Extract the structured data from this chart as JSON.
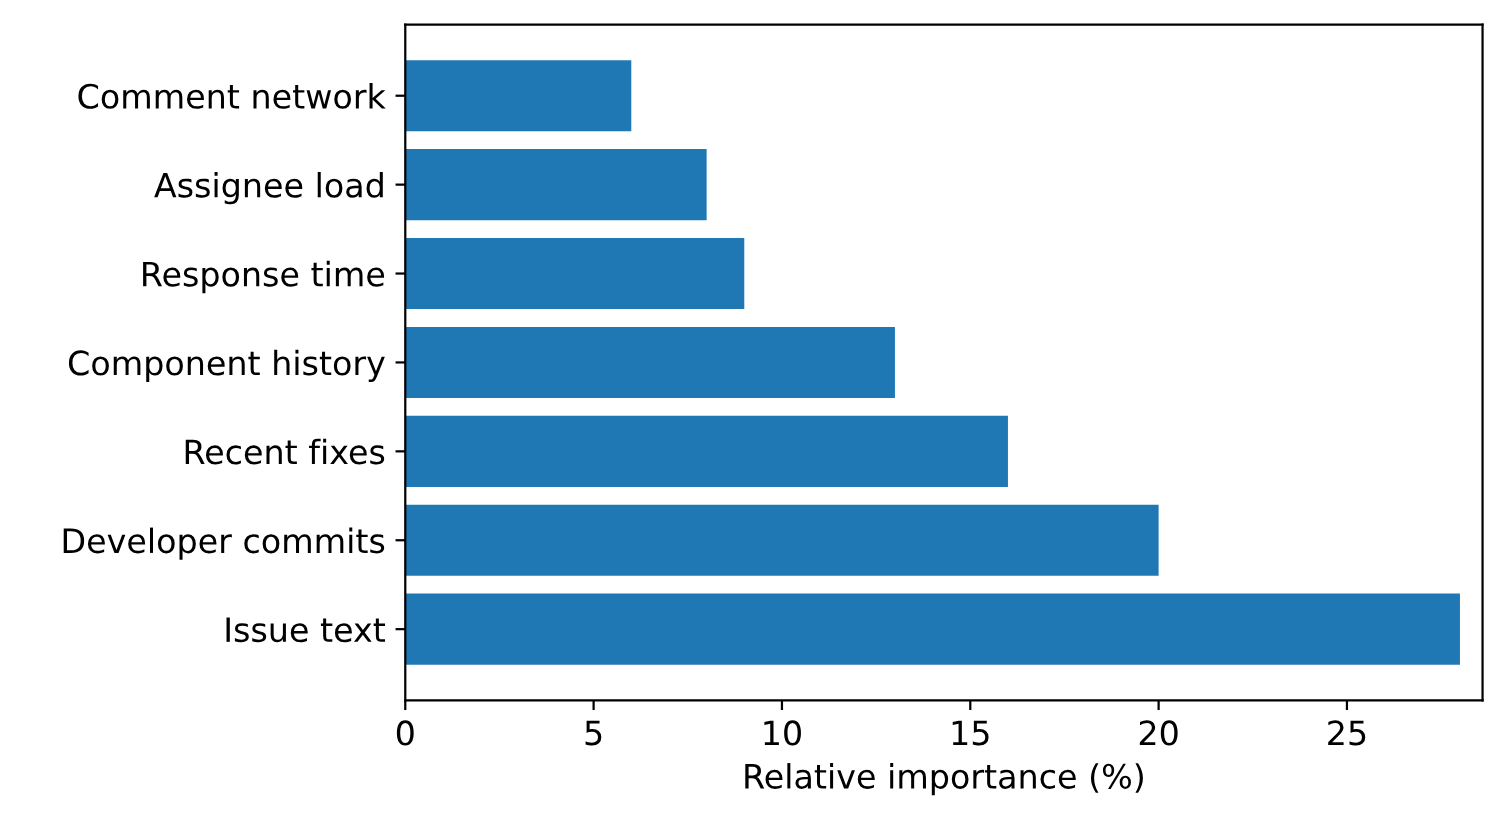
{
  "chart_data": {
    "type": "bar",
    "orientation": "horizontal",
    "xlabel": "Relative importance (%)",
    "categories": [
      "Comment network",
      "Assignee load",
      "Response time",
      "Component history",
      "Recent fixes",
      "Developer commits",
      "Issue text"
    ],
    "values": [
      6,
      8,
      9,
      13,
      16,
      20,
      28
    ],
    "color": "#1f77b4",
    "xlim": [
      0,
      28.6
    ],
    "xticks": [
      0,
      5,
      10,
      15,
      20,
      25
    ],
    "grid": false
  }
}
